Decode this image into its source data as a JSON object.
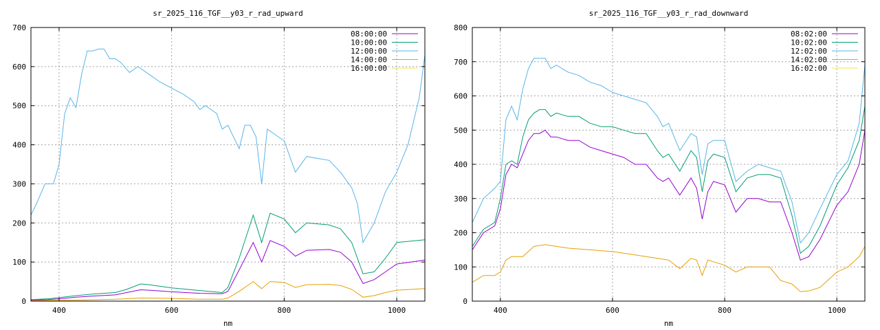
{
  "chart_data": [
    {
      "type": "line",
      "title": "sr_2025_116_TGF__y03_r_rad_upward",
      "xlabel": "nm",
      "ylabel": "",
      "xlim": [
        350,
        1050
      ],
      "ylim": [
        0,
        700
      ],
      "xticks": [
        400,
        600,
        800,
        1000
      ],
      "yticks": [
        0,
        100,
        200,
        300,
        400,
        500,
        600,
        700
      ],
      "grid": true,
      "legend_position": "top-right",
      "series": [
        {
          "name": "08:00:00",
          "color": "#9400d3",
          "x": [
            350,
            380,
            400,
            430,
            460,
            500,
            520,
            545,
            560,
            600,
            650,
            690,
            700,
            720,
            745,
            760,
            775,
            800,
            820,
            840,
            880,
            900,
            920,
            940,
            960,
            980,
            1000,
            1050
          ],
          "y": [
            3,
            4,
            6,
            10,
            13,
            16,
            22,
            29,
            28,
            24,
            20,
            19,
            25,
            80,
            150,
            100,
            155,
            140,
            115,
            130,
            132,
            125,
            100,
            45,
            55,
            75,
            95,
            105
          ]
        },
        {
          "name": "10:00:00",
          "color": "#009e73",
          "x": [
            350,
            380,
            400,
            430,
            460,
            500,
            520,
            545,
            560,
            600,
            650,
            690,
            700,
            720,
            745,
            760,
            775,
            800,
            820,
            840,
            880,
            900,
            920,
            940,
            960,
            980,
            1000,
            1050
          ],
          "y": [
            4,
            6,
            9,
            14,
            18,
            22,
            30,
            44,
            42,
            34,
            27,
            22,
            35,
            110,
            220,
            150,
            225,
            210,
            175,
            200,
            195,
            185,
            150,
            70,
            75,
            110,
            150,
            157
          ]
        },
        {
          "name": "12:00:00",
          "color": "#56b4e9",
          "x": [
            350,
            360,
            375,
            390,
            400,
            410,
            420,
            430,
            440,
            450,
            460,
            470,
            480,
            490,
            500,
            510,
            525,
            540,
            560,
            580,
            600,
            620,
            640,
            650,
            660,
            680,
            690,
            700,
            720,
            730,
            740,
            750,
            760,
            770,
            780,
            800,
            820,
            840,
            860,
            880,
            900,
            920,
            930,
            940,
            960,
            980,
            1000,
            1020,
            1040,
            1050
          ],
          "y": [
            220,
            250,
            300,
            300,
            350,
            480,
            520,
            495,
            580,
            640,
            640,
            645,
            645,
            620,
            620,
            610,
            585,
            600,
            580,
            560,
            545,
            530,
            510,
            490,
            500,
            480,
            440,
            450,
            390,
            450,
            450,
            420,
            300,
            440,
            430,
            410,
            330,
            370,
            365,
            360,
            330,
            290,
            250,
            150,
            200,
            280,
            330,
            400,
            520,
            630
          ]
        },
        {
          "name": "14:00:00",
          "color": "#e69f00",
          "x": [
            350,
            400,
            450,
            500,
            545,
            600,
            650,
            690,
            700,
            720,
            745,
            760,
            775,
            800,
            820,
            840,
            880,
            900,
            920,
            940,
            960,
            980,
            1000,
            1050
          ],
          "y": [
            1,
            2,
            3,
            5,
            8,
            7,
            5,
            5,
            8,
            25,
            50,
            32,
            50,
            48,
            35,
            42,
            43,
            40,
            30,
            10,
            14,
            22,
            28,
            32
          ]
        },
        {
          "name": "16:00:00",
          "color": "#f0e442",
          "x": [
            350,
            1050
          ],
          "y": [
            0,
            0
          ]
        }
      ]
    },
    {
      "type": "line",
      "title": "sr_2025_116_TGF__y03_r_rad_downward",
      "xlabel": "nm",
      "ylabel": "",
      "xlim": [
        350,
        1050
      ],
      "ylim": [
        0,
        800
      ],
      "xticks": [
        400,
        600,
        800,
        1000
      ],
      "yticks": [
        0,
        100,
        200,
        300,
        400,
        500,
        600,
        700,
        800
      ],
      "grid": true,
      "legend_position": "top-right",
      "series": [
        {
          "name": "08:02:00",
          "color": "#9400d3",
          "x": [
            350,
            370,
            390,
            400,
            410,
            420,
            430,
            440,
            450,
            460,
            470,
            480,
            490,
            500,
            520,
            540,
            560,
            580,
            600,
            620,
            640,
            660,
            680,
            690,
            700,
            720,
            740,
            750,
            760,
            770,
            780,
            800,
            820,
            840,
            860,
            880,
            900,
            920,
            935,
            950,
            970,
            1000,
            1020,
            1040,
            1050
          ],
          "y": [
            150,
            200,
            220,
            270,
            370,
            400,
            390,
            430,
            470,
            490,
            490,
            500,
            480,
            480,
            470,
            470,
            450,
            440,
            430,
            420,
            400,
            400,
            360,
            350,
            360,
            310,
            360,
            330,
            240,
            320,
            350,
            340,
            260,
            300,
            300,
            290,
            290,
            200,
            120,
            130,
            180,
            280,
            320,
            400,
            500
          ]
        },
        {
          "name": "10:02:00",
          "color": "#009e73",
          "x": [
            350,
            370,
            390,
            400,
            410,
            420,
            430,
            440,
            450,
            460,
            470,
            480,
            490,
            500,
            520,
            540,
            560,
            580,
            600,
            620,
            640,
            660,
            680,
            690,
            700,
            720,
            740,
            750,
            760,
            770,
            780,
            800,
            820,
            840,
            860,
            880,
            900,
            920,
            935,
            950,
            970,
            1000,
            1020,
            1040,
            1050
          ],
          "y": [
            160,
            210,
            230,
            300,
            400,
            410,
            400,
            480,
            530,
            550,
            560,
            560,
            540,
            550,
            540,
            540,
            520,
            510,
            510,
            500,
            490,
            490,
            440,
            420,
            430,
            380,
            440,
            420,
            320,
            410,
            430,
            420,
            320,
            360,
            370,
            370,
            360,
            250,
            140,
            160,
            220,
            340,
            390,
            470,
            570
          ]
        },
        {
          "name": "12:02:00",
          "color": "#56b4e9",
          "x": [
            350,
            370,
            390,
            400,
            410,
            420,
            430,
            440,
            450,
            460,
            470,
            480,
            490,
            500,
            520,
            540,
            560,
            580,
            600,
            620,
            640,
            660,
            680,
            690,
            700,
            720,
            740,
            750,
            760,
            770,
            780,
            800,
            820,
            840,
            860,
            880,
            900,
            920,
            935,
            950,
            970,
            1000,
            1020,
            1040,
            1050
          ],
          "y": [
            230,
            300,
            330,
            350,
            530,
            570,
            530,
            620,
            680,
            710,
            710,
            710,
            680,
            690,
            670,
            660,
            640,
            630,
            610,
            600,
            590,
            580,
            540,
            510,
            520,
            440,
            490,
            480,
            370,
            460,
            470,
            470,
            350,
            380,
            400,
            390,
            380,
            290,
            170,
            200,
            270,
            370,
            410,
            520,
            690
          ]
        },
        {
          "name": "14:02:00",
          "color": "#e69f00",
          "x": [
            350,
            370,
            390,
            400,
            410,
            420,
            440,
            460,
            480,
            500,
            520,
            560,
            600,
            640,
            680,
            700,
            720,
            740,
            750,
            760,
            770,
            780,
            800,
            820,
            840,
            860,
            880,
            900,
            920,
            935,
            950,
            970,
            1000,
            1020,
            1040,
            1050
          ],
          "y": [
            55,
            75,
            75,
            85,
            120,
            130,
            130,
            160,
            165,
            160,
            155,
            150,
            145,
            135,
            125,
            120,
            95,
            125,
            120,
            75,
            120,
            115,
            105,
            85,
            100,
            100,
            100,
            60,
            50,
            28,
            30,
            40,
            85,
            100,
            130,
            160
          ]
        },
        {
          "name": "16:02:00",
          "color": "#f0e442",
          "x": [
            350,
            1050
          ],
          "y": [
            0,
            0
          ]
        }
      ]
    }
  ]
}
